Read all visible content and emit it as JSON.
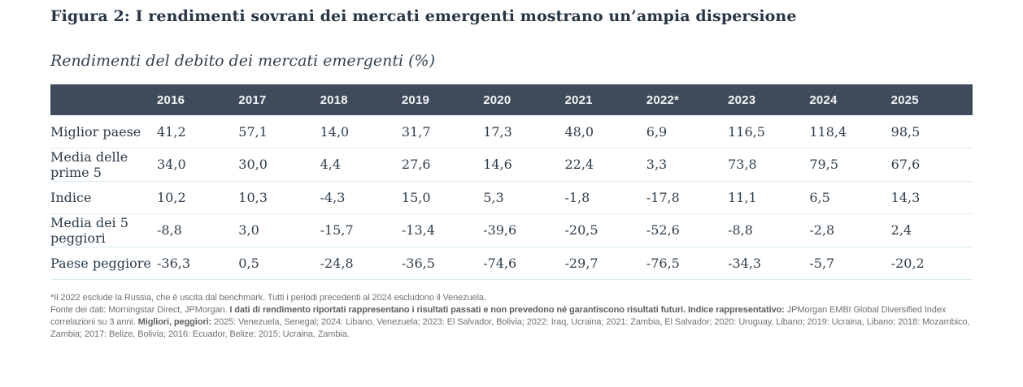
{
  "figure": {
    "title": "Figura 2: I rendimenti sovrani dei mercati emergenti mostrano un’ampia dispersione",
    "subtitle": "Rendimenti del debito dei mercati emergenti (%)"
  },
  "chart_data": {
    "type": "table",
    "columns": [
      "2016",
      "2017",
      "2018",
      "2019",
      "2020",
      "2021",
      "2022*",
      "2023",
      "2024",
      "2025"
    ],
    "rows": [
      {
        "label": "Miglior paese",
        "values": [
          "41,2",
          "57,1",
          "14,0",
          "31,7",
          "17,3",
          "48,0",
          "6,9",
          "116,5",
          "118,4",
          "98,5"
        ]
      },
      {
        "label": "Media delle prime 5",
        "values": [
          "34,0",
          "30,0",
          "4,4",
          "27,6",
          "14,6",
          "22,4",
          "3,3",
          "73,8",
          "79,5",
          "67,6"
        ]
      },
      {
        "label": "Indice",
        "values": [
          "10,2",
          "10,3",
          "-4,3",
          "15,0",
          "5,3",
          "-1,8",
          "-17,8",
          "11,1",
          "6,5",
          "14,3"
        ]
      },
      {
        "label": "Media dei 5 peggiori",
        "values": [
          "-8,8",
          "3,0",
          "-15,7",
          "-13,4",
          "-39,6",
          "-20,5",
          "-52,6",
          "-8,8",
          "-2,8",
          "2,4"
        ]
      },
      {
        "label": "Paese peggiore",
        "values": [
          "-36,3",
          "0,5",
          "-24,8",
          "-36,5",
          "-74,6",
          "-29,7",
          "-76,5",
          "-34,3",
          "-5,7",
          "-20,2"
        ]
      }
    ],
    "title": "Rendimenti del debito dei mercati emergenti (%)",
    "value_unit": "%"
  },
  "footnotes": {
    "note1": "*Il 2022 esclude la Russia, che è uscita dal benchmark. Tutti i periodi precedenti al 2024 escludono il Venezuela.",
    "source_segments": [
      {
        "text": "Fonte dei dati: Morningstar Direct, JPMorgan. ",
        "bold": false
      },
      {
        "text": "I dati di rendimento riportati rappresentano i risultati passati e non prevedono né garantiscono risultati futuri. ",
        "bold": true
      },
      {
        "text": "Indice rappresentativo: ",
        "bold": true
      },
      {
        "text": "JPMorgan EMBI Global Diversified Index correlazioni su 3 anni. ",
        "bold": false
      },
      {
        "text": "Migliori, peggiori: ",
        "bold": true
      },
      {
        "text": "2025: Venezuela, Senegal; 2024: Libano, Venezuela; 2023: El Salvador, Bolivia; 2022: Iraq, Ucraina; 2021: Zambia, El Salvador; 2020: Uruguay, Libano; 2019: Ucraina, Libano; 2018: Mozambico, Zambia; 2017: Belize, Bolivia; 2016: Ecuador, Belize; 2015: Ucraina, Zambia.",
        "bold": false
      }
    ]
  },
  "colors": {
    "header_background": "#3e4b5b",
    "header_text": "#f3f5f6",
    "body_text": "#2e3e4c",
    "title_text": "#273544",
    "row_divider": "#d8ecf4",
    "footnote_text": "#6e7276"
  }
}
